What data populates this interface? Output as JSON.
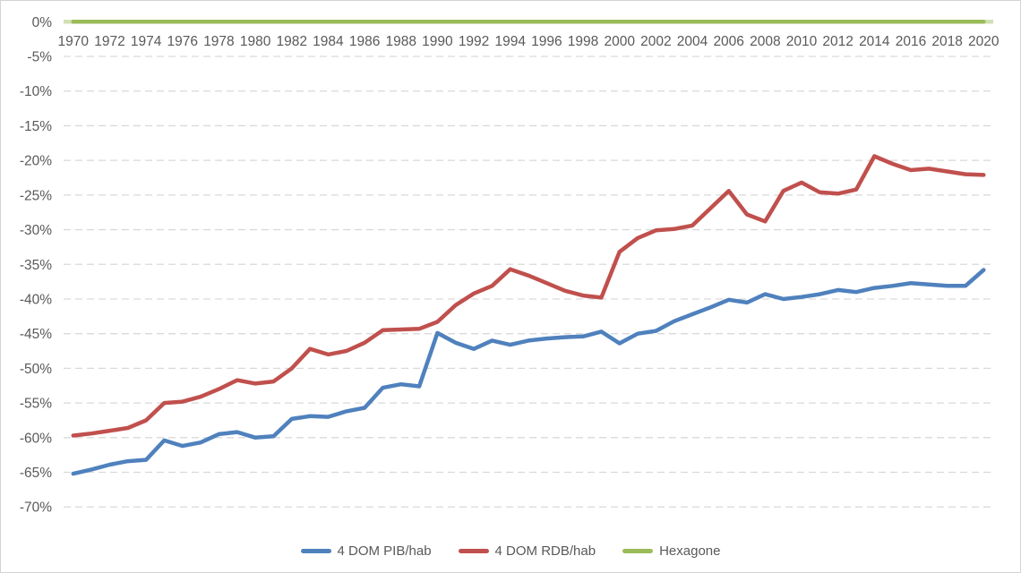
{
  "chart_data": {
    "type": "line",
    "title": "",
    "x": [
      1970,
      1971,
      1972,
      1973,
      1974,
      1975,
      1976,
      1977,
      1978,
      1979,
      1980,
      1981,
      1982,
      1983,
      1984,
      1985,
      1986,
      1987,
      1988,
      1989,
      1990,
      1991,
      1992,
      1993,
      1994,
      1995,
      1996,
      1997,
      1998,
      1999,
      2000,
      2001,
      2002,
      2003,
      2004,
      2005,
      2006,
      2007,
      2008,
      2009,
      2010,
      2011,
      2012,
      2013,
      2014,
      2015,
      2016,
      2017,
      2018,
      2019,
      2020
    ],
    "x_tick_labels": [
      "1970",
      "1972",
      "1974",
      "1976",
      "1978",
      "1980",
      "1982",
      "1984",
      "1986",
      "1988",
      "1990",
      "1992",
      "1994",
      "1996",
      "1998",
      "2000",
      "2002",
      "2004",
      "2006",
      "2008",
      "2010",
      "2012",
      "2014",
      "2016",
      "2018",
      "2020"
    ],
    "y_tick_labels": [
      "0%",
      "-5%",
      "-10%",
      "-15%",
      "-20%",
      "-25%",
      "-30%",
      "-35%",
      "-40%",
      "-45%",
      "-50%",
      "-55%",
      "-60%",
      "-65%",
      "-70%"
    ],
    "y_axis": {
      "min": -70,
      "max": 0,
      "step": 5,
      "unit": "%"
    },
    "grid": "horizontal-dashed",
    "legend_position": "bottom",
    "background_color": "#ffffff",
    "border_color": "#d4d4d4",
    "grid_color": "#d9d9d9",
    "text_color": "#595959",
    "series": [
      {
        "name": "4 DOM PIB/hab",
        "color": "#4F81BD",
        "values": [
          -65.2,
          -64.6,
          -63.9,
          -63.4,
          -63.2,
          -60.4,
          -61.2,
          -60.7,
          -59.5,
          -59.2,
          -60.0,
          -59.8,
          -57.3,
          -56.9,
          -57.0,
          -56.2,
          -55.7,
          -52.8,
          -52.3,
          -52.6,
          -44.9,
          -46.3,
          -47.2,
          -46.0,
          -46.6,
          -46.0,
          -45.7,
          -45.5,
          -45.4,
          -44.7,
          -46.4,
          -45.0,
          -44.6,
          -43.2,
          -42.2,
          -41.2,
          -40.1,
          -40.5,
          -39.3,
          -40.0,
          -39.7,
          -39.3,
          -38.7,
          -39.0,
          -38.4,
          -38.1,
          -37.7,
          -37.9,
          -38.1,
          -38.1,
          -35.8
        ]
      },
      {
        "name": "4 DOM RDB/hab",
        "color": "#C0504D",
        "values": [
          -59.7,
          -59.4,
          -59.0,
          -58.6,
          -57.5,
          -55.0,
          -54.8,
          -54.1,
          -53.0,
          -51.7,
          -52.2,
          -51.9,
          -50.0,
          -47.2,
          -48.0,
          -47.5,
          -46.3,
          -44.5,
          -44.4,
          -44.3,
          -43.3,
          -40.9,
          -39.2,
          -38.1,
          -35.7,
          -36.6,
          -37.7,
          -38.8,
          -39.5,
          -39.8,
          -33.2,
          -31.2,
          -30.1,
          -29.9,
          -29.4,
          -26.9,
          -24.4,
          -27.8,
          -28.8,
          -24.4,
          -23.2,
          -24.6,
          -24.8,
          -24.2,
          -19.4,
          -20.5,
          -21.4,
          -21.2,
          -21.6,
          -22.0,
          -22.1
        ]
      },
      {
        "name": "Hexagone",
        "color": "#9BBB59",
        "values": [
          0,
          0,
          0,
          0,
          0,
          0,
          0,
          0,
          0,
          0,
          0,
          0,
          0,
          0,
          0,
          0,
          0,
          0,
          0,
          0,
          0,
          0,
          0,
          0,
          0,
          0,
          0,
          0,
          0,
          0,
          0,
          0,
          0,
          0,
          0,
          0,
          0,
          0,
          0,
          0,
          0,
          0,
          0,
          0,
          0,
          0,
          0,
          0,
          0,
          0,
          0
        ]
      }
    ]
  }
}
